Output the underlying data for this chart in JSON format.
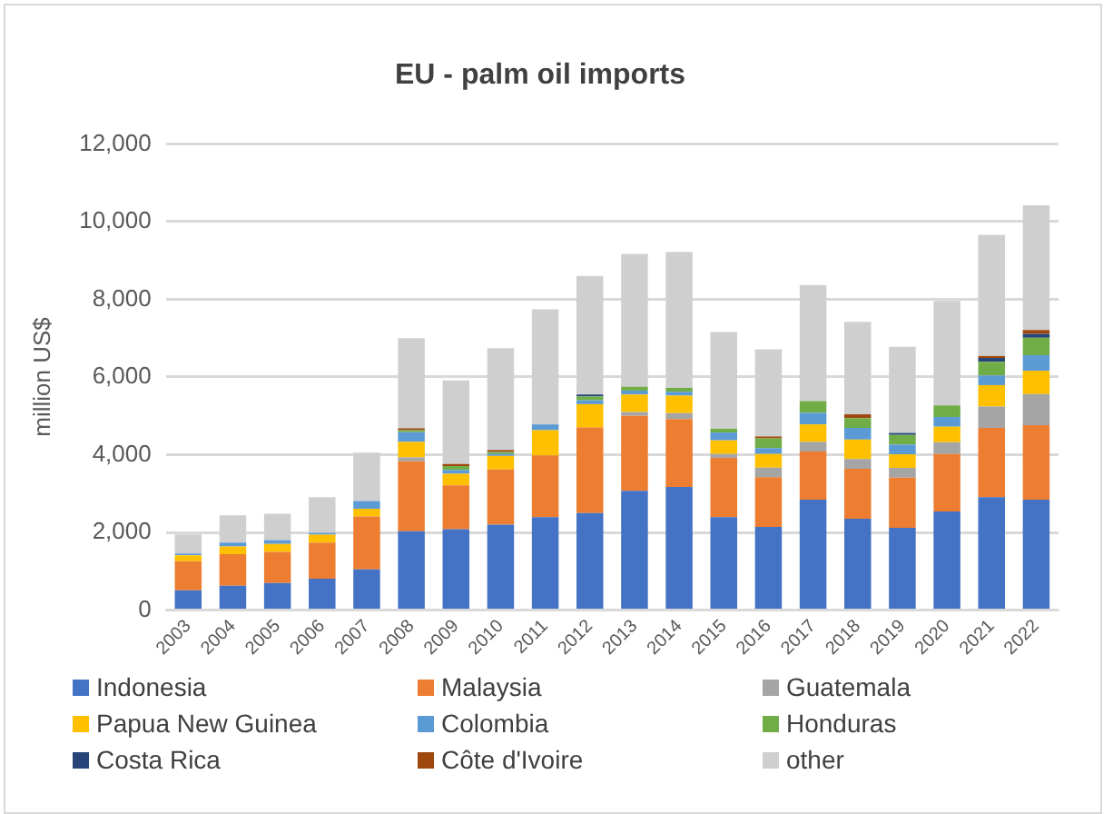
{
  "chart_data": {
    "type": "bar",
    "stacked": true,
    "title": "EU - palm oil imports",
    "ylabel": "million US$",
    "categories": [
      "2003",
      "2004",
      "2005",
      "2006",
      "2007",
      "2008",
      "2009",
      "2010",
      "2011",
      "2012",
      "2013",
      "2014",
      "2015",
      "2016",
      "2017",
      "2018",
      "2019",
      "2020",
      "2021",
      "2022"
    ],
    "ylim": [
      0,
      12000
    ],
    "yticks": [
      {
        "value": 0,
        "label": "0"
      },
      {
        "value": 2000,
        "label": "2,000"
      },
      {
        "value": 4000,
        "label": "4,000"
      },
      {
        "value": 6000,
        "label": "6,000"
      },
      {
        "value": 8000,
        "label": "8,000"
      },
      {
        "value": 10000,
        "label": "10,000"
      },
      {
        "value": 12000,
        "label": "12,000"
      }
    ],
    "grid": "y",
    "legend": "bottom",
    "series": [
      {
        "name": "Indonesia",
        "color": "#4472c4",
        "values": [
          510,
          630,
          700,
          810,
          1050,
          2030,
          2080,
          2200,
          2390,
          2500,
          3070,
          3170,
          2390,
          2140,
          2840,
          2350,
          2120,
          2540,
          2910,
          2840
        ]
      },
      {
        "name": "Malaysia",
        "color": "#ed7d31",
        "values": [
          750,
          810,
          800,
          930,
          1360,
          1800,
          1130,
          1420,
          1590,
          2200,
          1930,
          1750,
          1530,
          1280,
          1240,
          1290,
          1290,
          1480,
          1780,
          1920
        ]
      },
      {
        "name": "Guatemala",
        "color": "#a5a5a5",
        "values": [
          0,
          0,
          0,
          0,
          0,
          100,
          null,
          0,
          0,
          0,
          100,
          150,
          100,
          250,
          250,
          250,
          250,
          300,
          550,
          800
        ]
      },
      {
        "name": "Papua New Guinea",
        "color": "#ffc000",
        "values": [
          150,
          200,
          200,
          200,
          200,
          400,
          300,
          350,
          650,
          600,
          450,
          450,
          350,
          350,
          450,
          500,
          350,
          400,
          550,
          600
        ]
      },
      {
        "name": "Colombia",
        "color": "#5b9bd5",
        "values": [
          50,
          100,
          100,
          50,
          200,
          250,
          100,
          50,
          150,
          100,
          100,
          100,
          200,
          150,
          300,
          300,
          250,
          250,
          250,
          400
        ]
      },
      {
        "name": "Honduras",
        "color": "#70ad47",
        "values": [
          0,
          0,
          0,
          0,
          0,
          50,
          100,
          50,
          0,
          100,
          100,
          100,
          100,
          250,
          300,
          250,
          250,
          300,
          350,
          450
        ]
      },
      {
        "name": "Costa Rica",
        "color": "#264478",
        "values": [
          0,
          0,
          0,
          0,
          0,
          0,
          0,
          0,
          0,
          50,
          0,
          0,
          0,
          0,
          0,
          0,
          50,
          0,
          100,
          100
        ]
      },
      {
        "name": "Côte d'Ivoire",
        "color": "#9e480e",
        "values": [
          0,
          0,
          0,
          0,
          0,
          50,
          50,
          50,
          0,
          0,
          0,
          0,
          0,
          50,
          0,
          100,
          0,
          0,
          50,
          100
        ]
      },
      {
        "name": "other",
        "color": "#cfcfcf",
        "values": [
          490,
          700,
          680,
          920,
          1240,
          2320,
          2150,
          2620,
          2960,
          3050,
          3420,
          3500,
          2490,
          2240,
          2990,
          2380,
          2220,
          2690,
          3120,
          3210
        ]
      }
    ]
  }
}
